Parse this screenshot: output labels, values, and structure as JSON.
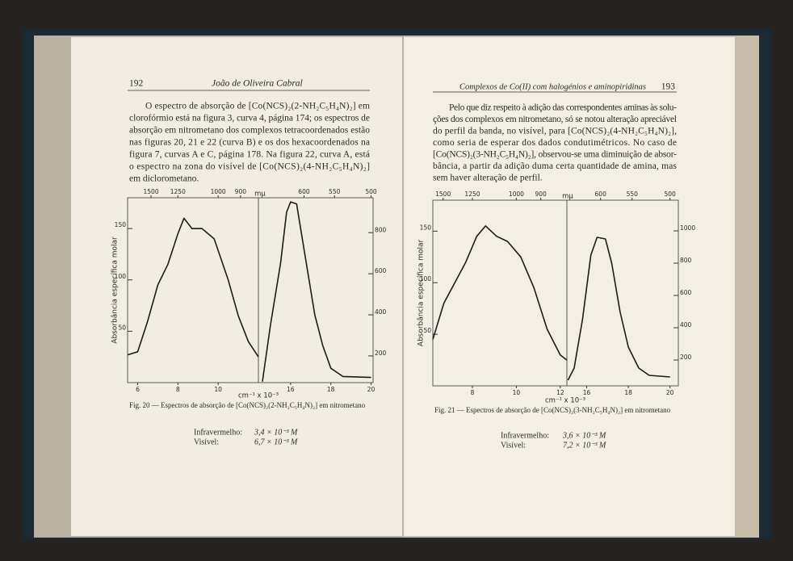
{
  "left_page": {
    "header": {
      "page_number": "192",
      "running_title": "João de Oliveira Cabral"
    },
    "paragraph": [
      "O espectro de absorção de [Co(NCS)₂(2-NH₂C₅H₄N)₂] em",
      "clorofórmio está na figura 3, curva 4, página 174; os espectros de",
      "absorção em nitrometano dos complexos tetracoordenados estão",
      "nas figuras 20, 21 e 22 (curva B) e os dos hexacoordenados na",
      "figura 7, curvas A e C, página 178. Na figura 22, curva A, está",
      "o espectro na zona do visível de [Co(NCS)₂(4-NH₂C₅H₄N)₂]",
      "em diclorometano."
    ],
    "figure": {
      "y_label": "Absorbância específica molar",
      "x_label": "cm⁻¹ x 10⁻³",
      "top_label": "mμ",
      "panels": [
        {
          "xlim": [
            5.5,
            12
          ],
          "ylim": [
            0,
            180
          ],
          "xticks": [
            6,
            8,
            10
          ],
          "yticks": [
            50,
            100,
            150
          ],
          "top_ticks": [
            1500,
            1250,
            1000,
            900
          ],
          "curve": {
            "x": [
              5.5,
              6,
              6.5,
              7,
              7.5,
              8,
              8.3,
              8.7,
              9.2,
              9.8,
              10.5,
              11,
              11.5,
              12
            ],
            "values": [
              27,
              30,
              60,
              95,
              115,
              145,
              160,
              150,
              150,
              140,
              100,
              65,
              40,
              25
            ]
          }
        },
        {
          "xlim": [
            14.4,
            20.1
          ],
          "ylim": [
            70,
            970
          ],
          "xticks": [
            16,
            18,
            20
          ],
          "yticks": [
            200,
            400,
            600,
            800
          ],
          "top_ticks": [
            600,
            550,
            500
          ],
          "curve": {
            "x": [
              14.6,
              15,
              15.5,
              15.8,
              16,
              16.3,
              16.7,
              17.2,
              17.6,
              18,
              18.6,
              20
            ],
            "values": [
              75,
              350,
              650,
              900,
              950,
              940,
              700,
              400,
              250,
              140,
              100,
              95
            ]
          }
        }
      ]
    },
    "caption": "Fig. 20 — Espectros de absorção de [Co(NCS)₂(2-NH₂C₅H₄N)₂] em nitrometano",
    "concentrations": [
      {
        "label": "Infravermelho:",
        "value": "3,4 × 10⁻³ M"
      },
      {
        "label": "Visível:",
        "value": "6,7 × 10⁻³ M"
      }
    ]
  },
  "right_page": {
    "header": {
      "page_number": "193",
      "running_title": "Complexos de Co(II) com halogénios e aminopiridinas"
    },
    "paragraph": [
      "Pelo que diz respeito à adição das correspondentes aminas às solu-",
      "ções dos complexos em nitrometano, só se notou alteração apreciável",
      "do perfil da banda, no visível, para [Co(NCS)₂(4-NH₂C₅H₄N)₂],",
      "como seria de esperar dos dados condutimétricos. No caso de",
      "[Co(NCS)₂(3-NH₂C₅H₄N)₂], observou-se uma diminuição de absor-",
      "bância, a partir da adição duma certa quantidade de amina, mas",
      "sem haver alteração de perfil."
    ],
    "figure": {
      "y_label": "Absorbância específica molar",
      "x_label": "cm⁻¹ x 10⁻³",
      "top_label": "mμ",
      "panels": [
        {
          "xlim": [
            6.2,
            12.3
          ],
          "ylim": [
            0,
            180
          ],
          "xticks": [
            8,
            10,
            12
          ],
          "yticks": [
            50,
            100,
            150
          ],
          "top_ticks": [
            1500,
            1250,
            1000,
            900
          ],
          "curve": {
            "x": [
              6.2,
              6.7,
              7.2,
              7.7,
              8.2,
              8.6,
              9.1,
              9.6,
              10.2,
              10.8,
              11.4,
              12,
              12.3
            ],
            "values": [
              45,
              80,
              100,
              120,
              145,
              155,
              145,
              140,
              125,
              95,
              55,
              30,
              25
            ]
          }
        },
        {
          "xlim": [
            15.05,
            20.4
          ],
          "ylim": [
            40,
            1190
          ],
          "xticks": [
            16,
            18,
            20
          ],
          "yticks": [
            200,
            400,
            600,
            800,
            1000
          ],
          "top_ticks": [
            600,
            550,
            500
          ],
          "curve": {
            "x": [
              15.1,
              15.4,
              15.8,
              16.2,
              16.5,
              16.9,
              17.2,
              17.6,
              18,
              18.5,
              19,
              20
            ],
            "values": [
              75,
              150,
              450,
              850,
              960,
              950,
              800,
              500,
              280,
              150,
              105,
              95
            ]
          }
        }
      ]
    },
    "caption": "Fig. 21 — Espectros de absorção de [Co(NCS)₂(3-NH₂C₅H₄N)₂] em nitrometano",
    "concentrations": [
      {
        "label": "Infravermelho:",
        "value": "3,6 × 10⁻³ M"
      },
      {
        "label": "Visível:",
        "value": "7,2 × 10⁻³ M"
      }
    ]
  }
}
